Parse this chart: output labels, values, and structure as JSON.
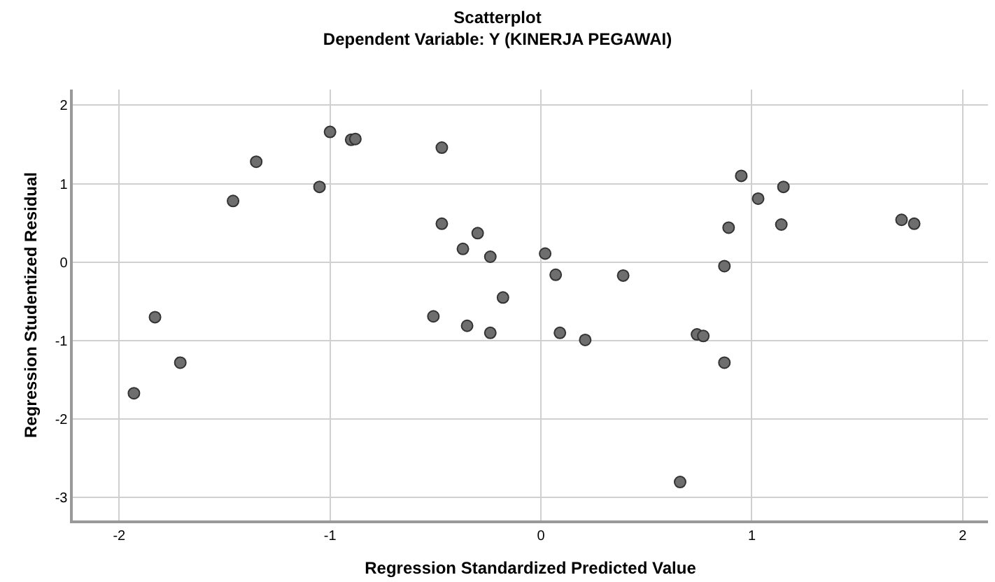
{
  "chart_data": {
    "type": "scatter",
    "title": "Scatterplot",
    "subtitle": "Dependent Variable: Y (KINERJA PEGAWAI)",
    "xlabel": "Regression Standardized Predicted Value",
    "ylabel": "Regression Studentized Residual",
    "x": [
      -1.0,
      -0.9,
      -0.88,
      -1.35,
      -1.05,
      -1.46,
      -0.47,
      -0.47,
      -0.3,
      -0.37,
      -0.24,
      -0.18,
      -1.83,
      -0.51,
      -0.35,
      -0.24,
      -1.71,
      -1.93,
      0.95,
      1.15,
      1.03,
      0.89,
      1.14,
      1.71,
      1.77,
      0.02,
      0.07,
      0.39,
      0.87,
      0.09,
      0.21,
      0.74,
      0.77,
      0.87,
      0.66
    ],
    "series": [
      {
        "color": "#6e6e6e",
        "values": [
          1.66,
          1.56,
          1.57,
          1.28,
          0.96,
          0.78,
          1.46,
          0.49,
          0.37,
          0.17,
          0.07,
          -0.45,
          -0.7,
          -0.69,
          -0.81,
          -0.9,
          -1.28,
          -1.67,
          1.1,
          0.96,
          0.81,
          0.44,
          0.48,
          0.54,
          0.49,
          0.11,
          -0.16,
          -0.17,
          -0.05,
          -0.9,
          -0.99,
          -0.92,
          -0.94,
          -1.28,
          -2.8
        ]
      }
    ],
    "xlim": [
      -2.22,
      2.12
    ],
    "ylim": [
      -3.29,
      2.2
    ],
    "xticks": [
      -2,
      -1,
      0,
      1,
      2
    ],
    "yticks": [
      -3,
      -2,
      -1,
      0,
      1,
      2
    ],
    "grid": true,
    "marker": "circle"
  }
}
